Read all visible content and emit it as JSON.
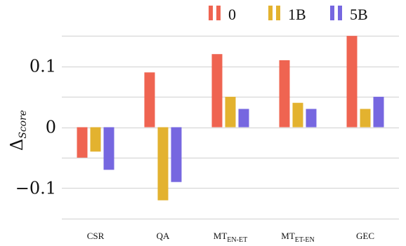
{
  "chart_data": {
    "type": "bar",
    "categories": [
      {
        "main": "CSR",
        "sub": ""
      },
      {
        "main": "QA",
        "sub": ""
      },
      {
        "main": "MT",
        "sub": "EN-ET"
      },
      {
        "main": "MT",
        "sub": "ET-EN"
      },
      {
        "main": "GEC",
        "sub": ""
      }
    ],
    "series": [
      {
        "name": "0",
        "color": "#ef6451",
        "values": [
          -0.05,
          0.09,
          0.12,
          0.11,
          0.15
        ]
      },
      {
        "name": "1B",
        "color": "#e3b22f",
        "values": [
          -0.04,
          -0.12,
          0.05,
          0.04,
          0.03
        ]
      },
      {
        "name": "5B",
        "color": "#7667e0",
        "values": [
          -0.07,
          -0.09,
          0.03,
          0.03,
          0.05
        ]
      }
    ],
    "ylabel": {
      "main": "Δ",
      "sub": "Score"
    },
    "ylim": [
      -0.15,
      0.15
    ],
    "yticks": [
      {
        "value": 0.1,
        "label": "0.1"
      },
      {
        "value": 0,
        "label": "0"
      },
      {
        "value": -0.1,
        "label": "−0.1"
      }
    ],
    "grid": true,
    "legend_position": "top-right"
  }
}
